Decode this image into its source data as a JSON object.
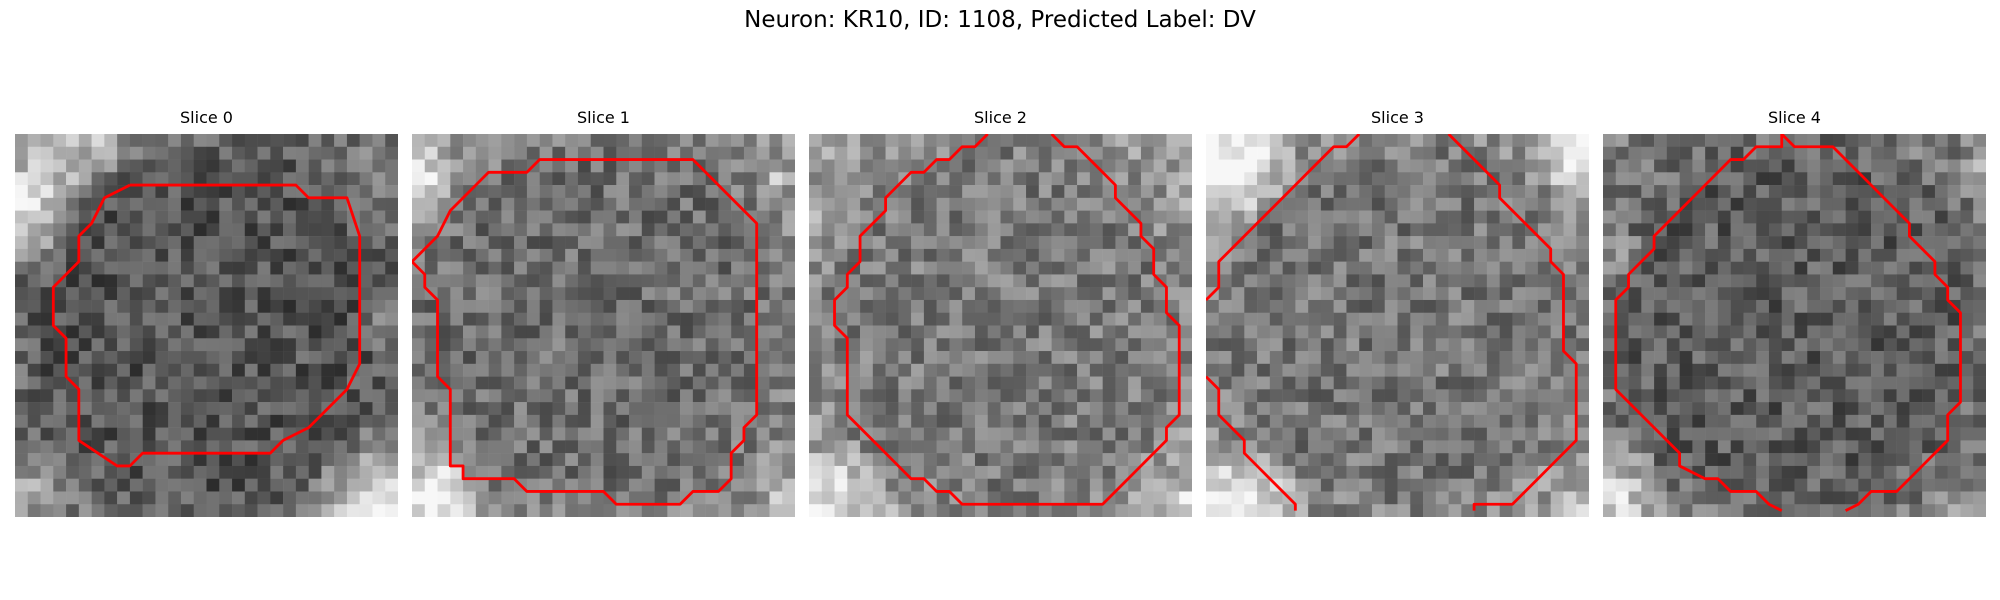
{
  "figure": {
    "title": "Neuron: KR10, ID: 1108, Predicted Label: DV"
  },
  "slices": [
    {
      "title": "Slice 0",
      "colormap": "grayscale",
      "contour_color": "#ff0000",
      "background": "dark roughly circular cell body centered, bright tissue at left and lower-right corners"
    },
    {
      "title": "Slice 1",
      "colormap": "grayscale",
      "contour_color": "#ff0000",
      "background": "cell body filling most of the frame, slightly brighter interior"
    },
    {
      "title": "Slice 2",
      "colormap": "grayscale",
      "contour_color": "#ff0000",
      "background": "cell body with noisy texture, bright strip along bottom edge"
    },
    {
      "title": "Slice 3",
      "colormap": "grayscale",
      "contour_color": "#ff0000",
      "background": "cell body with bright tissue at upper-left and lower-left corners"
    },
    {
      "title": "Slice 4",
      "colormap": "grayscale",
      "contour_color": "#ff0000",
      "background": "darker cell body, bright patches at lower-left"
    }
  ]
}
